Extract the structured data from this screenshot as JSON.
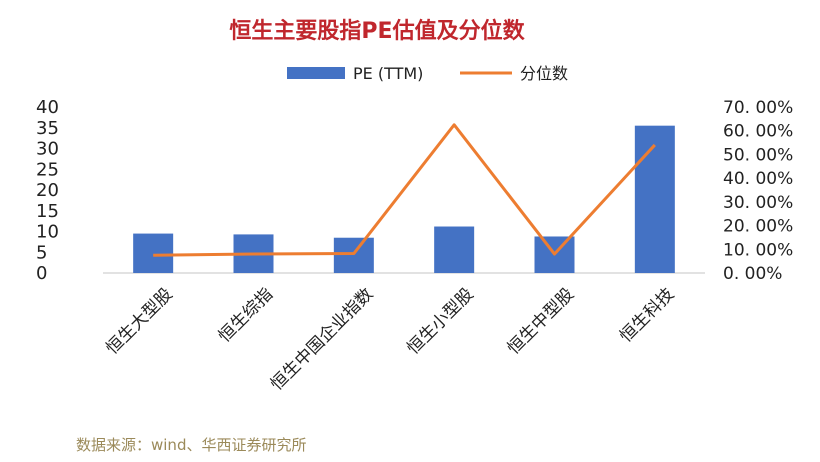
{
  "chart_data": {
    "type": "bar",
    "title": "恒生主要股指PE估值及分位数",
    "categories": [
      "恒生大型股",
      "恒生综指",
      "恒生中国企业指数",
      "恒生小型股",
      "恒生中型股",
      "恒生科技"
    ],
    "series": [
      {
        "name": "PE (TTM)",
        "type": "bar",
        "axis": "left",
        "values": [
          9.5,
          9.3,
          8.5,
          11.2,
          8.8,
          35.5
        ]
      },
      {
        "name": "分位数",
        "type": "line",
        "axis": "right",
        "values": [
          7.5,
          8.0,
          8.2,
          62.5,
          8.0,
          54.0
        ]
      }
    ],
    "y_left": {
      "ticks": [
        "40",
        "35",
        "30",
        "25",
        "20",
        "15",
        "10",
        "5",
        "0"
      ],
      "ylim": [
        0,
        40
      ]
    },
    "y_right": {
      "ticks": [
        "70. 00%",
        "60. 00%",
        "50. 00%",
        "40. 00%",
        "30. 00%",
        "20. 00%",
        "10. 00%",
        "0. 00%"
      ],
      "ylim": [
        0,
        70
      ]
    },
    "legend_position": "top-center",
    "grid": false,
    "colors": {
      "title": "#c0272d",
      "bar": "#4472c4",
      "line": "#ed7d31",
      "axis": "#d9d9d9",
      "source": "#9b8a5a"
    },
    "source": "数据来源：wind、华西证券研究所"
  }
}
